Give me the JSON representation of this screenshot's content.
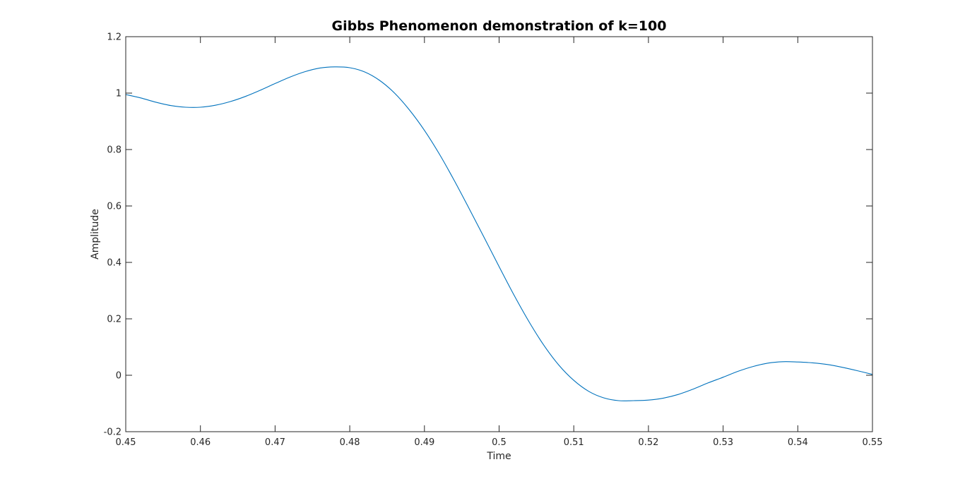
{
  "chart_data": {
    "type": "line",
    "title": "Gibbs Phenomenon demonstration of k=100",
    "xlabel": "Time",
    "ylabel": "Amplitude",
    "xlim": [
      0.45,
      0.55
    ],
    "ylim": [
      -0.2,
      1.2
    ],
    "x_ticks": [
      0.45,
      0.46,
      0.47,
      0.48,
      0.49,
      0.5,
      0.51,
      0.52,
      0.53,
      0.54,
      0.55
    ],
    "x_tick_labels": [
      "0.45",
      "0.46",
      "0.47",
      "0.48",
      "0.49",
      "0.5",
      "0.51",
      "0.52",
      "0.53",
      "0.54",
      "0.55"
    ],
    "y_ticks": [
      -0.2,
      0,
      0.2,
      0.4,
      0.6,
      0.8,
      1,
      1.2
    ],
    "y_tick_labels": [
      "-0.2",
      "0",
      "0.2",
      "0.4",
      "0.6",
      "0.8",
      "1",
      "1.2"
    ],
    "grid": false,
    "box": true,
    "series": [
      {
        "color": "#0072bd",
        "x": [
          0.45,
          0.452,
          0.454,
          0.456,
          0.458,
          0.46,
          0.462,
          0.464,
          0.466,
          0.468,
          0.47,
          0.472,
          0.474,
          0.476,
          0.478,
          0.48,
          0.482,
          0.484,
          0.486,
          0.488,
          0.49,
          0.492,
          0.494,
          0.496,
          0.498,
          0.5,
          0.502,
          0.504,
          0.506,
          0.508,
          0.51,
          0.512,
          0.514,
          0.516,
          0.518,
          0.52,
          0.522,
          0.524,
          0.526,
          0.528,
          0.53,
          0.532,
          0.534,
          0.536,
          0.538,
          0.54,
          0.542,
          0.544,
          0.546,
          0.548,
          0.55
        ],
        "y": [
          0.995,
          0.983,
          0.968,
          0.956,
          0.95,
          0.95,
          0.957,
          0.97,
          0.988,
          1.01,
          1.034,
          1.057,
          1.076,
          1.089,
          1.093,
          1.09,
          1.075,
          1.045,
          1.0,
          0.94,
          0.868,
          0.784,
          0.69,
          0.59,
          0.488,
          0.385,
          0.284,
          0.19,
          0.106,
          0.036,
          -0.018,
          -0.057,
          -0.08,
          -0.09,
          -0.09,
          -0.088,
          -0.081,
          -0.068,
          -0.049,
          -0.027,
          -0.007,
          0.014,
          0.031,
          0.043,
          0.048,
          0.047,
          0.044,
          0.038,
          0.028,
          0.016,
          0.003
        ]
      }
    ]
  }
}
